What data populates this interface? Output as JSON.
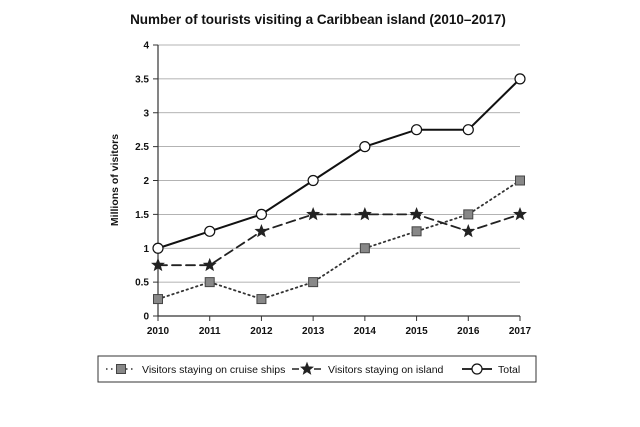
{
  "chart_data": {
    "type": "line",
    "title": "Number of tourists visiting a Caribbean island (2010–2017)",
    "xlabel": "",
    "ylabel": "Millions of visitors",
    "x": [
      "2010",
      "2011",
      "2012",
      "2013",
      "2014",
      "2015",
      "2016",
      "2017"
    ],
    "y_ticks": [
      "0",
      "0.5",
      "1",
      "1.5",
      "2",
      "2.5",
      "3",
      "3.5",
      "4"
    ],
    "ylim": [
      0,
      4
    ],
    "grid": true,
    "legend_position": "bottom",
    "series": [
      {
        "name": "Visitors staying on cruise ships",
        "values": [
          0.25,
          0.5,
          0.25,
          0.5,
          1,
          1.25,
          1.5,
          2
        ],
        "line_style": "dotted",
        "marker": "square",
        "color": "#333333",
        "marker_color": "#888888"
      },
      {
        "name": "Visitors staying on island",
        "values": [
          0.75,
          0.75,
          1.25,
          1.5,
          1.5,
          1.5,
          1.25,
          1.5
        ],
        "line_style": "dashed",
        "marker": "star",
        "color": "#222222",
        "marker_color": "#222222"
      },
      {
        "name": "Total",
        "values": [
          1,
          1.25,
          1.5,
          2,
          2.5,
          2.75,
          2.75,
          3.5
        ],
        "line_style": "solid",
        "marker": "circle",
        "color": "#111111",
        "marker_color": "#ffffff"
      }
    ]
  }
}
